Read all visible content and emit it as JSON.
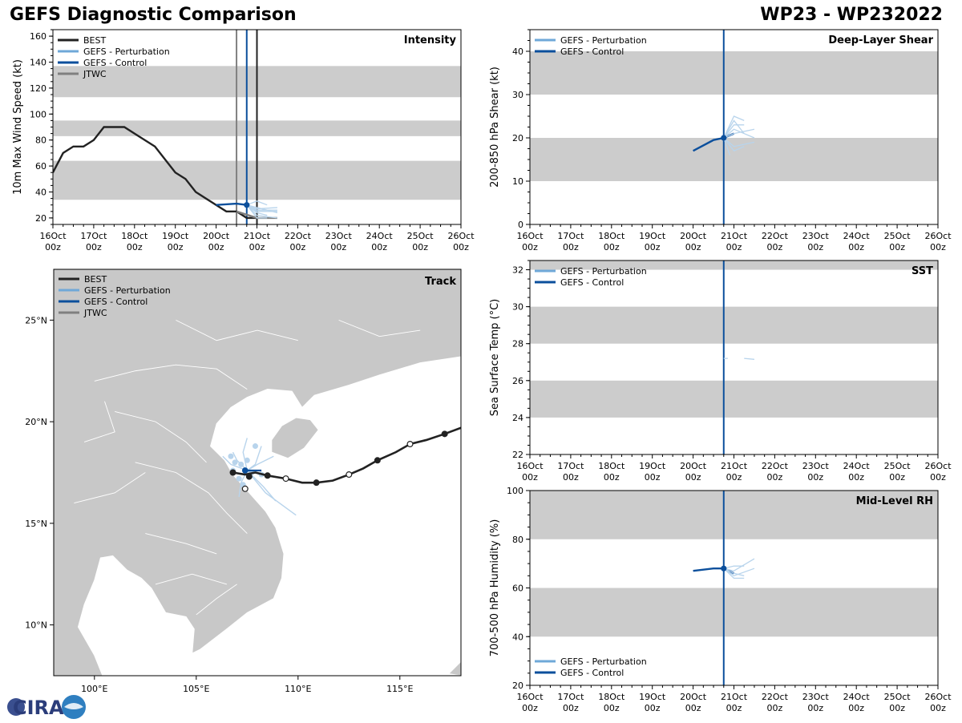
{
  "header": {
    "title_left": "GEFS Diagnostic Comparison",
    "title_right": "WP23 - WP232022"
  },
  "colors": {
    "best": "#222222",
    "perturbation": "#6fa8d8",
    "perturbation_light": "#b8d4ec",
    "control": "#0b4f9c",
    "jtwc": "#808080",
    "band": "#cccccc"
  },
  "time_ticks": {
    "top": [
      "16Oct",
      "17Oct",
      "18Oct",
      "19Oct",
      "20Oct",
      "21Oct",
      "22Oct",
      "23Oct",
      "24Oct",
      "25Oct",
      "26Oct"
    ],
    "bottom": "00z"
  },
  "legend_labels": {
    "best": "BEST",
    "perturbation": "GEFS - Perturbation",
    "control": "GEFS - Control",
    "jtwc": "JTWC"
  },
  "logo_text": "CIRA",
  "chart_data": [
    {
      "id": "intensity",
      "type": "line",
      "title": "Intensity",
      "ylabel": "10m Max Wind Speed (kt)",
      "xlabel": "",
      "xlim": [
        0,
        10
      ],
      "ylim": [
        15,
        165
      ],
      "yticks": [
        20,
        40,
        60,
        80,
        100,
        120,
        140,
        160
      ],
      "bands": [
        [
          34,
          64
        ],
        [
          83,
          95
        ],
        [
          113,
          137
        ]
      ],
      "vlines": [
        {
          "x": 4.5,
          "series": "jtwc"
        },
        {
          "x": 4.75,
          "series": "control"
        },
        {
          "x": 5.0,
          "series": "best"
        }
      ],
      "legend": [
        "best",
        "perturbation",
        "control",
        "jtwc"
      ],
      "legend_position": "top-left",
      "series": [
        {
          "name": "BEST",
          "key": "best",
          "points": [
            [
              0,
              55
            ],
            [
              0.25,
              70
            ],
            [
              0.5,
              75
            ],
            [
              0.75,
              75
            ],
            [
              1.0,
              80
            ],
            [
              1.25,
              90
            ],
            [
              1.5,
              90
            ],
            [
              1.75,
              90
            ],
            [
              2.0,
              85
            ],
            [
              2.5,
              75
            ],
            [
              3.0,
              55
            ],
            [
              3.25,
              50
            ],
            [
              3.5,
              40
            ],
            [
              4.0,
              30
            ],
            [
              4.25,
              25
            ],
            [
              4.5,
              25
            ],
            [
              4.75,
              20
            ],
            [
              5.0,
              20
            ]
          ]
        },
        {
          "name": "JTWC",
          "key": "jtwc",
          "points": [
            [
              4.5,
              25
            ],
            [
              5.0,
              20
            ],
            [
              5.5,
              20
            ]
          ]
        },
        {
          "name": "GEFS - Control",
          "key": "control",
          "points": [
            [
              4.0,
              30
            ],
            [
              4.5,
              31
            ],
            [
              4.75,
              30
            ],
            [
              5.0,
              25
            ]
          ]
        },
        {
          "name": "GEFS - Perturbation",
          "key": "perturbation",
          "members": [
            [
              [
                4.75,
                30
              ],
              [
                5.0,
                25
              ],
              [
                5.5,
                25
              ]
            ],
            [
              [
                4.75,
                30
              ],
              [
                5.0,
                22
              ],
              [
                5.5,
                20
              ]
            ],
            [
              [
                4.75,
                30
              ],
              [
                5.0,
                27
              ],
              [
                5.5,
                28
              ]
            ],
            [
              [
                4.75,
                30
              ],
              [
                5.0,
                24
              ],
              [
                5.25,
                22
              ]
            ],
            [
              [
                4.75,
                30
              ],
              [
                5.0,
                28
              ],
              [
                5.5,
                24
              ]
            ],
            [
              [
                4.75,
                30
              ],
              [
                5.0,
                20
              ],
              [
                5.25,
                20
              ]
            ],
            [
              [
                4.75,
                30
              ],
              [
                5.0,
                33
              ],
              [
                5.25,
                30
              ]
            ],
            [
              [
                4.75,
                30
              ],
              [
                5.0,
                26
              ],
              [
                5.5,
                26
              ]
            ]
          ]
        }
      ],
      "markers": [
        {
          "x": 4.75,
          "y": 30,
          "series": "control"
        }
      ]
    },
    {
      "id": "shear",
      "type": "line",
      "title": "Deep-Layer Shear",
      "ylabel": "200-850 hPa Shear (kt)",
      "xlabel": "",
      "xlim": [
        0,
        10
      ],
      "ylim": [
        0,
        45
      ],
      "yticks": [
        0,
        10,
        20,
        30,
        40
      ],
      "bands": [
        [
          10,
          20
        ],
        [
          30,
          40
        ]
      ],
      "vlines": [
        {
          "x": 4.75,
          "series": "control"
        }
      ],
      "legend": [
        "perturbation",
        "control"
      ],
      "legend_position": "top-left",
      "series": [
        {
          "name": "GEFS - Control",
          "key": "control",
          "points": [
            [
              4.0,
              17
            ],
            [
              4.5,
              19.5
            ],
            [
              4.75,
              20
            ],
            [
              5.0,
              21
            ]
          ]
        },
        {
          "name": "GEFS - Perturbation",
          "key": "perturbation",
          "members": [
            [
              [
                4.75,
                20
              ],
              [
                5.0,
                23
              ],
              [
                5.25,
                23
              ]
            ],
            [
              [
                4.75,
                20
              ],
              [
                5.0,
                18
              ],
              [
                5.5,
                19
              ]
            ],
            [
              [
                4.75,
                20
              ],
              [
                5.0,
                22
              ],
              [
                5.5,
                20
              ]
            ],
            [
              [
                4.75,
                20
              ],
              [
                5.0,
                25
              ],
              [
                5.25,
                24
              ]
            ],
            [
              [
                4.75,
                20
              ],
              [
                5.0,
                17
              ],
              [
                5.25,
                18
              ]
            ],
            [
              [
                4.75,
                20
              ],
              [
                5.0,
                21
              ],
              [
                5.5,
                22
              ]
            ],
            [
              [
                4.75,
                20
              ],
              [
                4.9,
                16
              ]
            ],
            [
              [
                4.75,
                20
              ],
              [
                5.0,
                24
              ],
              [
                5.25,
                21
              ]
            ]
          ]
        }
      ],
      "markers": [
        {
          "x": 4.75,
          "y": 20,
          "series": "control"
        }
      ]
    },
    {
      "id": "sst",
      "type": "line",
      "title": "SST",
      "ylabel": "Sea Surface Temp (°C)",
      "xlabel": "",
      "xlim": [
        0,
        10
      ],
      "ylim": [
        22,
        32.5
      ],
      "yticks": [
        22,
        24,
        26,
        28,
        30,
        32
      ],
      "bands": [
        [
          24,
          26
        ],
        [
          28,
          30
        ],
        [
          32,
          32.5
        ]
      ],
      "vlines": [
        {
          "x": 4.75,
          "series": "control"
        }
      ],
      "legend": [
        "perturbation",
        "control"
      ],
      "legend_position": "top-left",
      "series": [
        {
          "name": "GEFS - Perturbation",
          "key": "perturbation",
          "members": [
            [
              [
                5.25,
                27.2
              ],
              [
                5.5,
                27.15
              ]
            ],
            [
              [
                4.75,
                27.2
              ],
              [
                4.85,
                27.2
              ]
            ]
          ]
        }
      ],
      "markers": []
    },
    {
      "id": "rh",
      "type": "line",
      "title": "Mid-Level RH",
      "ylabel": "700-500 hPa Humidity (%)",
      "xlabel": "",
      "xlim": [
        0,
        10
      ],
      "ylim": [
        20,
        100
      ],
      "yticks": [
        20,
        40,
        60,
        80,
        100
      ],
      "bands": [
        [
          40,
          60
        ],
        [
          80,
          100
        ]
      ],
      "vlines": [
        {
          "x": 4.75,
          "series": "control"
        }
      ],
      "legend": [
        "perturbation",
        "control"
      ],
      "legend_position": "bottom-left",
      "series": [
        {
          "name": "GEFS - Control",
          "key": "control",
          "points": [
            [
              4.0,
              67
            ],
            [
              4.5,
              68
            ],
            [
              4.75,
              68
            ],
            [
              5.0,
              66
            ]
          ]
        },
        {
          "name": "GEFS - Perturbation",
          "key": "perturbation",
          "members": [
            [
              [
                4.75,
                68
              ],
              [
                5.0,
                66
              ],
              [
                5.25,
                65
              ]
            ],
            [
              [
                4.75,
                68
              ],
              [
                5.0,
                69
              ],
              [
                5.25,
                69
              ]
            ],
            [
              [
                4.75,
                68
              ],
              [
                5.0,
                65
              ],
              [
                5.5,
                68
              ]
            ],
            [
              [
                4.75,
                68
              ],
              [
                5.0,
                67
              ],
              [
                5.5,
                72
              ]
            ],
            [
              [
                4.75,
                68
              ],
              [
                5.0,
                64
              ],
              [
                5.25,
                64
              ]
            ]
          ]
        }
      ],
      "markers": [
        {
          "x": 4.75,
          "y": 68,
          "series": "control"
        }
      ]
    },
    {
      "id": "track",
      "type": "scatter",
      "title": "Track",
      "xlabel": "",
      "ylabel": "",
      "xlim": [
        98,
        118
      ],
      "ylim": [
        7.5,
        27.5
      ],
      "xticks": [
        100,
        105,
        110,
        115
      ],
      "xtick_labels": [
        "100°E",
        "105°E",
        "110°E",
        "115°E"
      ],
      "yticks": [
        10,
        15,
        20,
        25
      ],
      "ytick_labels": [
        "10°N",
        "15°N",
        "20°N",
        "25°N"
      ],
      "legend": [
        "best",
        "perturbation",
        "control",
        "jtwc"
      ],
      "legend_position": "top-left",
      "best_track": [
        [
          118,
          19.7
        ],
        [
          117.2,
          19.4
        ],
        [
          116.3,
          19.1
        ],
        [
          115.5,
          18.9
        ],
        [
          114.8,
          18.5
        ],
        [
          113.9,
          18.1
        ],
        [
          113.2,
          17.7
        ],
        [
          112.5,
          17.4
        ],
        [
          111.7,
          17.1
        ],
        [
          110.9,
          17.0
        ],
        [
          110.2,
          17.0
        ],
        [
          109.4,
          17.2
        ],
        [
          108.5,
          17.35
        ],
        [
          107.9,
          17.5
        ],
        [
          107.4,
          17.4
        ],
        [
          106.8,
          17.5
        ]
      ],
      "best_points": [
        {
          "lon": 117.2,
          "lat": 19.4,
          "filled": true
        },
        {
          "lon": 115.5,
          "lat": 18.9,
          "filled": false
        },
        {
          "lon": 113.9,
          "lat": 18.1,
          "filled": true
        },
        {
          "lon": 112.5,
          "lat": 17.4,
          "filled": false
        },
        {
          "lon": 110.9,
          "lat": 17.0,
          "filled": true
        },
        {
          "lon": 109.4,
          "lat": 17.2,
          "filled": false
        },
        {
          "lon": 108.5,
          "lat": 17.35,
          "filled": true
        },
        {
          "lon": 107.6,
          "lat": 17.3,
          "filled": true
        },
        {
          "lon": 106.8,
          "lat": 17.5,
          "filled": true
        },
        {
          "lon": 107.4,
          "lat": 16.7,
          "filled": false
        }
      ],
      "control_track": [
        [
          108.2,
          17.6
        ],
        [
          107.9,
          17.6
        ],
        [
          107.4,
          17.6
        ]
      ],
      "perturbation_tracks": [
        [
          [
            107.5,
            17.6
          ],
          [
            107.0,
            18.1
          ],
          [
            106.8,
            18.5
          ]
        ],
        [
          [
            107.5,
            17.6
          ],
          [
            107.9,
            17.9
          ],
          [
            108.2,
            18.8
          ]
        ],
        [
          [
            107.5,
            17.6
          ],
          [
            108.3,
            16.8
          ],
          [
            108.9,
            16.1
          ]
        ],
        [
          [
            107.5,
            17.6
          ],
          [
            108.4,
            16.5
          ],
          [
            109.9,
            15.4
          ]
        ],
        [
          [
            107.5,
            17.6
          ],
          [
            107.2,
            17.0
          ],
          [
            107.1,
            16.3
          ]
        ],
        [
          [
            107.5,
            17.6
          ],
          [
            106.7,
            17.9
          ],
          [
            106.3,
            18.3
          ]
        ],
        [
          [
            107.5,
            17.6
          ],
          [
            108.0,
            17.9
          ],
          [
            108.8,
            18.3
          ]
        ],
        [
          [
            107.5,
            17.6
          ],
          [
            107.3,
            18.5
          ],
          [
            107.5,
            19.2
          ]
        ]
      ],
      "perturbation_points": [
        [
          106.7,
          18.3
        ],
        [
          106.9,
          18.0
        ],
        [
          107.2,
          17.9
        ],
        [
          107.5,
          18.1
        ],
        [
          107.9,
          18.8
        ],
        [
          107.1,
          17.2
        ],
        [
          107.3,
          16.9
        ],
        [
          108.2,
          17.4
        ],
        [
          107.7,
          17.5
        ],
        [
          106.8,
          17.6
        ]
      ]
    }
  ]
}
